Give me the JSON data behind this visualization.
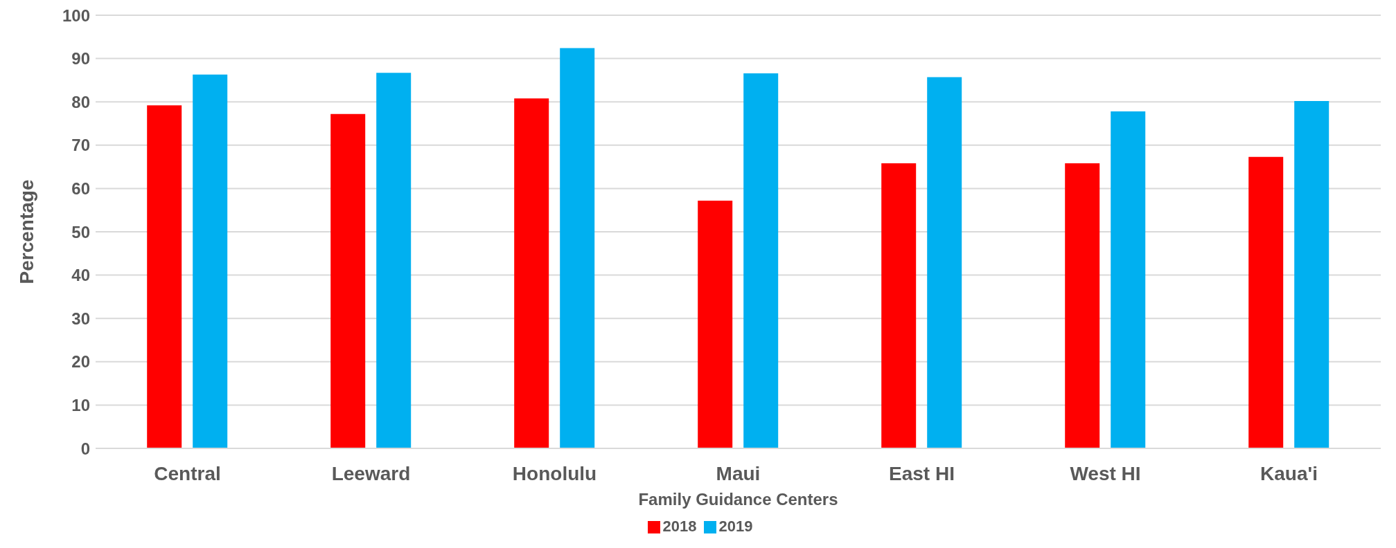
{
  "chart_data": {
    "type": "bar",
    "xlabel": "Family Guidance Centers",
    "ylabel": "Percentage",
    "categories": [
      "Central",
      "Leeward",
      "Honolulu",
      "Maui",
      "East HI",
      "West HI",
      "Kaua'i"
    ],
    "series": [
      {
        "name": "2018",
        "color": "#ff0000",
        "values": [
          79.2,
          77.2,
          80.8,
          57.2,
          65.8,
          65.8,
          67.3
        ]
      },
      {
        "name": "2019",
        "color": "#00b0f0",
        "values": [
          86.3,
          86.7,
          92.4,
          86.6,
          85.7,
          77.8,
          80.2
        ]
      }
    ],
    "ylim": [
      0,
      100
    ],
    "yticks": [
      0,
      10,
      20,
      30,
      40,
      50,
      60,
      70,
      80,
      90,
      100
    ],
    "grid": "y",
    "legend": "bottom"
  }
}
